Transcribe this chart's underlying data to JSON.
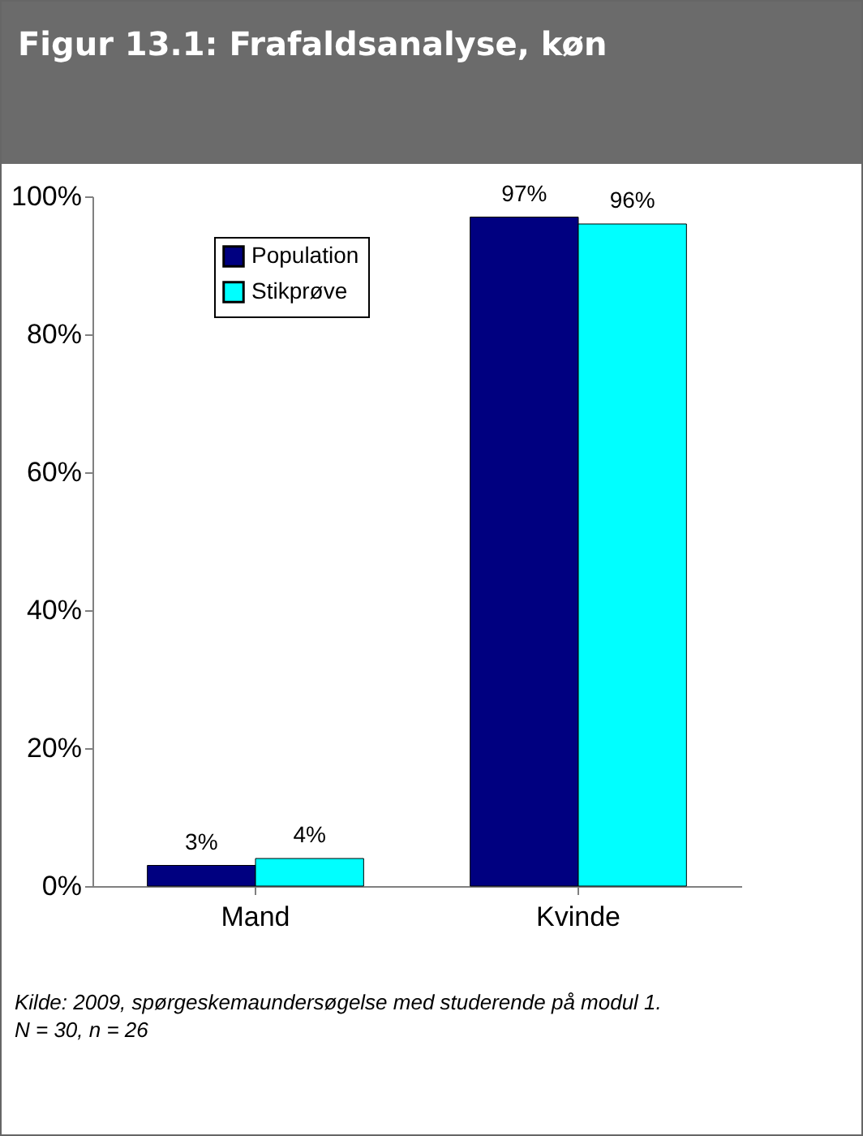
{
  "chart_data": {
    "type": "bar",
    "title": "Figur 13.1: Frafaldsanalyse, køn",
    "categories": [
      "Mand",
      "Kvinde"
    ],
    "series": [
      {
        "name": "Population",
        "color": "#000080",
        "values": [
          3,
          97
        ]
      },
      {
        "name": "Stikprøve",
        "color": "#00ffff",
        "values": [
          4,
          96
        ]
      }
    ],
    "ylim": [
      0,
      100
    ],
    "yticks": [
      {
        "value": 0,
        "label": "0%"
      },
      {
        "value": 20,
        "label": "20%"
      },
      {
        "value": 40,
        "label": "40%"
      },
      {
        "value": 60,
        "label": "60%"
      },
      {
        "value": 80,
        "label": "80%"
      },
      {
        "value": 100,
        "label": "100%"
      }
    ],
    "value_labels": [
      [
        "3%",
        "97%"
      ],
      [
        "4%",
        "96%"
      ]
    ],
    "grid": false,
    "legend": "top left",
    "annotations": [
      "Kilde: 2009, spørgeskemaundersøgelse med studerende på modul 1.",
      "N = 30, n = 26"
    ]
  }
}
